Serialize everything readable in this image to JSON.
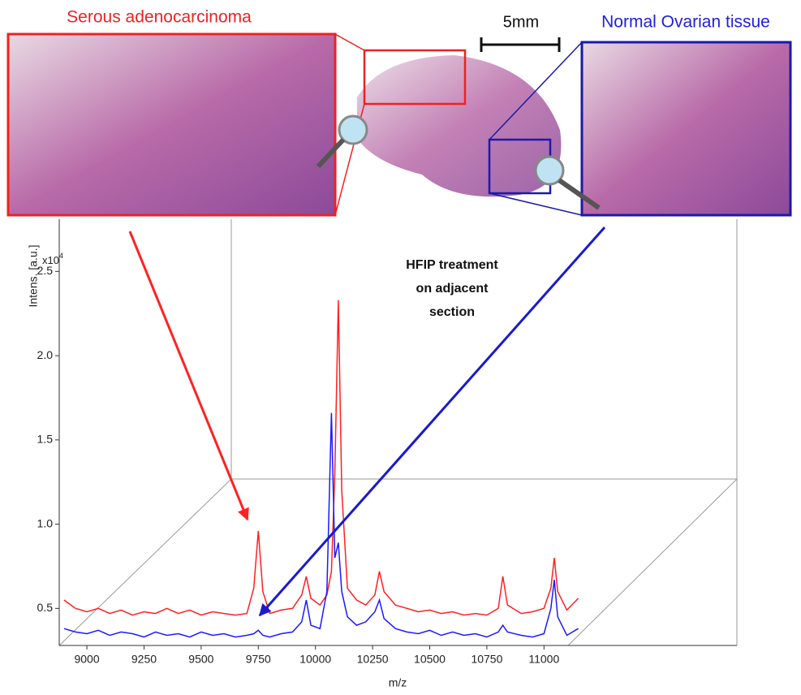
{
  "chart_data": {
    "type": "line",
    "annotations": {
      "left_label": "Serous adenocarcinoma",
      "scale_bar": "5mm",
      "right_label": "Normal Ovarian tissue",
      "treatment": [
        "HFIP treatment",
        "on adjacent",
        "section"
      ]
    },
    "x_label": "m/z",
    "y_label": "Intens. [a.u.]",
    "y_multiplier": "x10",
    "y_multiplier_exp": "4",
    "xlim": [
      8879,
      11844
    ],
    "ylim": [
      0.28,
      2.81
    ],
    "xticks": [
      9000,
      9250,
      9500,
      9750,
      10000,
      10250,
      10500,
      10750,
      11000
    ],
    "yticks": [
      0.5,
      {
        "value": 1,
        "label": "1.0"
      },
      1.5,
      {
        "value": 2,
        "label": "2.0"
      },
      2.5
    ],
    "x": [
      8900,
      8950,
      9000,
      9050,
      9100,
      9150,
      9200,
      9250,
      9300,
      9350,
      9400,
      9450,
      9500,
      9550,
      9600,
      9650,
      9700,
      9730,
      9750,
      9770,
      9800,
      9850,
      9900,
      9940,
      9960,
      9980,
      10020,
      10050,
      10070,
      10085,
      10100,
      10115,
      10140,
      10180,
      10220,
      10260,
      10280,
      10300,
      10350,
      10400,
      10450,
      10500,
      10550,
      10600,
      10650,
      10700,
      10750,
      10800,
      10820,
      10840,
      10900,
      10950,
      11000,
      11030,
      11045,
      11060,
      11100,
      11150
    ],
    "series": [
      {
        "color": "#ff2020",
        "values": [
          0.55,
          0.5,
          0.48,
          0.5,
          0.47,
          0.49,
          0.46,
          0.48,
          0.47,
          0.5,
          0.47,
          0.49,
          0.46,
          0.48,
          0.47,
          0.46,
          0.47,
          0.62,
          0.96,
          0.6,
          0.47,
          0.49,
          0.5,
          0.58,
          0.69,
          0.56,
          0.52,
          0.58,
          0.72,
          1.3,
          2.33,
          1.2,
          0.62,
          0.55,
          0.52,
          0.58,
          0.72,
          0.6,
          0.52,
          0.5,
          0.48,
          0.49,
          0.47,
          0.48,
          0.46,
          0.47,
          0.46,
          0.5,
          0.69,
          0.52,
          0.47,
          0.48,
          0.5,
          0.62,
          0.8,
          0.6,
          0.49,
          0.56
        ]
      },
      {
        "color": "#1a1aff",
        "values": [
          0.38,
          0.36,
          0.35,
          0.37,
          0.34,
          0.36,
          0.35,
          0.33,
          0.36,
          0.34,
          0.35,
          0.33,
          0.36,
          0.34,
          0.35,
          0.33,
          0.34,
          0.35,
          0.37,
          0.34,
          0.33,
          0.35,
          0.36,
          0.42,
          0.55,
          0.4,
          0.38,
          0.6,
          1.66,
          0.8,
          0.89,
          0.6,
          0.45,
          0.4,
          0.42,
          0.48,
          0.55,
          0.44,
          0.38,
          0.36,
          0.35,
          0.37,
          0.34,
          0.36,
          0.34,
          0.35,
          0.33,
          0.36,
          0.4,
          0.36,
          0.34,
          0.33,
          0.35,
          0.5,
          0.67,
          0.45,
          0.34,
          0.38
        ]
      }
    ]
  }
}
